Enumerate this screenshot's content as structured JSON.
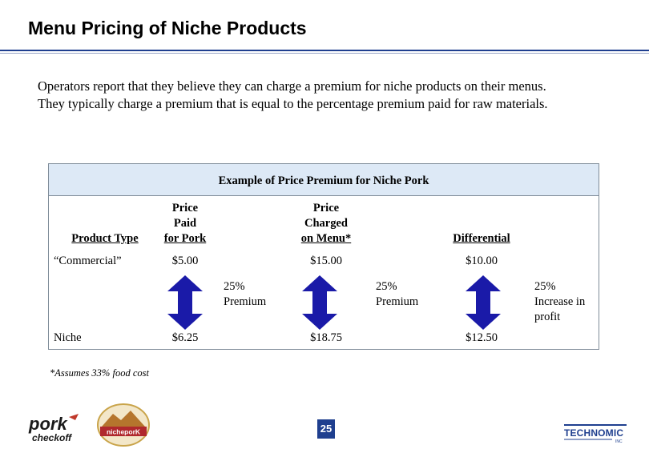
{
  "title": "Menu Pricing of Niche Products",
  "intro": {
    "line1": "Operators report that they believe they can charge a premium for niche products on their menus.",
    "line2": "They typically charge a premium that is equal to the percentage premium paid for raw materials."
  },
  "table": {
    "title": "Example of Price Premium for Niche Pork",
    "headers": {
      "product_type": "Product Type",
      "price_paid": [
        "Price",
        "Paid",
        "for Pork"
      ],
      "price_charged": [
        "Price",
        "Charged",
        "on Menu*"
      ],
      "differential": "Differential"
    },
    "rows": [
      {
        "label": "“Commercial”",
        "paid": "$5.00",
        "charged": "$15.00",
        "diff": "$10.00"
      },
      {
        "label": "Niche",
        "paid": "$6.25",
        "charged": "$18.75",
        "diff": "$12.50"
      }
    ],
    "premiums": {
      "paid": [
        "25%",
        "Premium"
      ],
      "charged": [
        "25%",
        "Premium"
      ],
      "diff": [
        "25%",
        "Increase in",
        "profit"
      ]
    },
    "arrow_color": "#1a1aa8"
  },
  "footnote": "*Assumes 33% food cost",
  "footer": {
    "logo_pork_top": "pork",
    "logo_pork_bottom": "checkoff",
    "logo_niche": "nicheporK",
    "page_number": "25",
    "brand": "TECHNOMIC",
    "brand_sub": "INC"
  }
}
